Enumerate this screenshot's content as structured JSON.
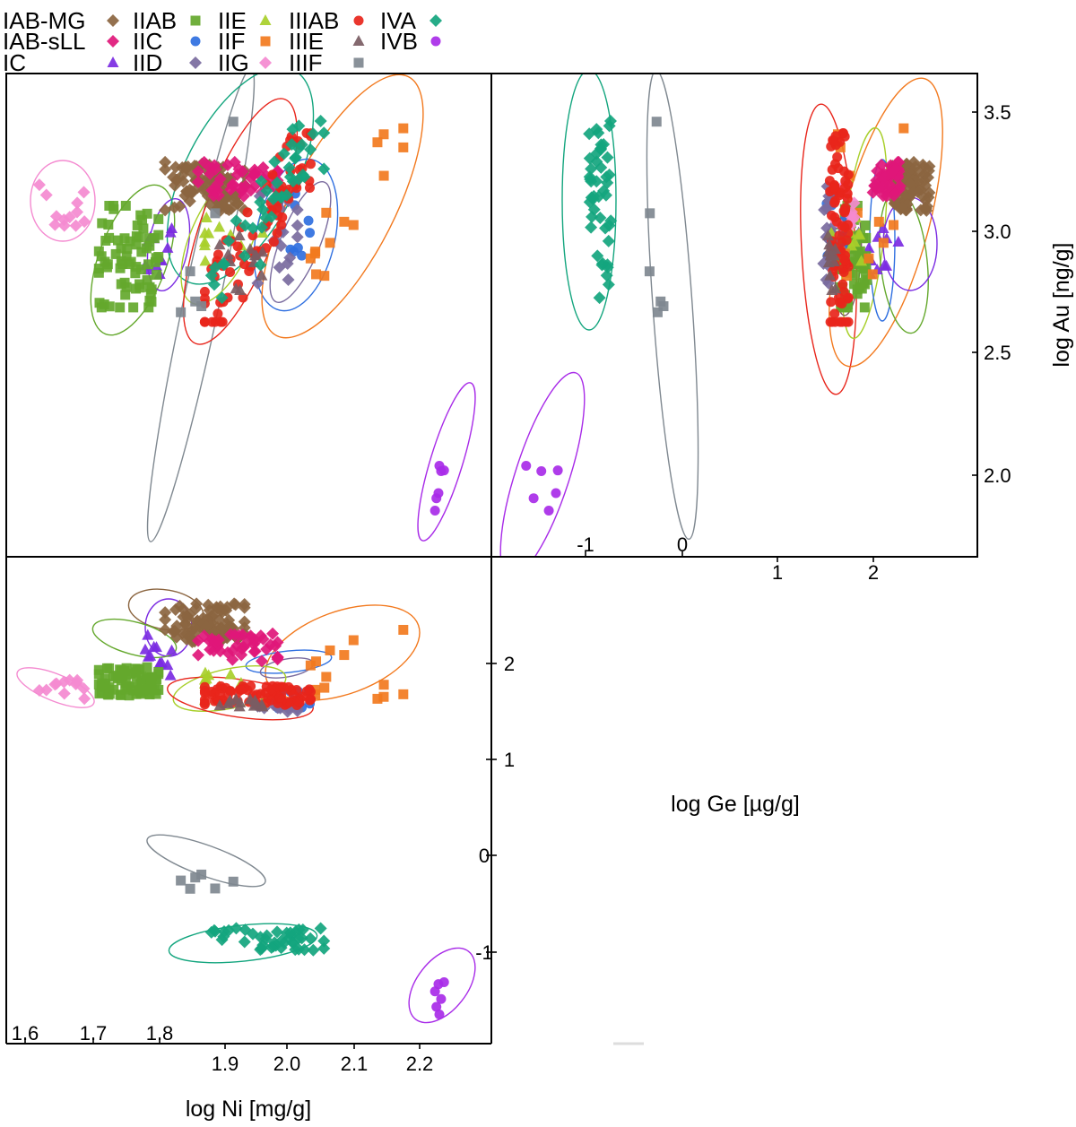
{
  "legend": [
    {
      "name": "IAB-MG",
      "color": "#8B6540",
      "marker": "diamond"
    },
    {
      "name": "IAB-sLL",
      "color": "#E0177A",
      "marker": "diamond"
    },
    {
      "name": "IC",
      "color": "#7B2BE2",
      "marker": "triangle"
    },
    {
      "name": "IIAB",
      "color": "#64A82C",
      "marker": "square"
    },
    {
      "name": "IIC",
      "color": "#2F6FE0",
      "marker": "circle"
    },
    {
      "name": "IID",
      "color": "#7A6B9E",
      "marker": "diamond"
    },
    {
      "name": "IIE",
      "color": "#A8CF2A",
      "marker": "triangle"
    },
    {
      "name": "IIF",
      "color": "#F2791E",
      "marker": "square"
    },
    {
      "name": "IIG",
      "color": "#F48AD0",
      "marker": "diamond"
    },
    {
      "name": "IIIAB",
      "color": "#E8251B",
      "marker": "circle"
    },
    {
      "name": "IIIE",
      "color": "#7A5C63",
      "marker": "triangle"
    },
    {
      "name": "IIIF",
      "color": "#7F8890",
      "marker": "square"
    },
    {
      "name": "IVA",
      "color": "#13A57E",
      "marker": "diamond"
    },
    {
      "name": "IVB",
      "color": "#A82BE8",
      "marker": "circle"
    }
  ],
  "chart_data": {
    "type": "scatter",
    "xlabel": "log Ni [mg/g]",
    "ylabel": "log Au [ng/g]",
    "ge_label": "log Ge [µg/g]",
    "ni_range": [
      1.57,
      2.3
    ],
    "ge_range": [
      -2.0,
      3.0
    ],
    "au_range": [
      1.65,
      3.65
    ],
    "ticks": {
      "ni_left": [
        "1.6",
        "1.7",
        "1.8"
      ],
      "ni_bottom": [
        "1.9",
        "2.0",
        "2.1",
        "2.2"
      ],
      "ge_inner": [
        "-1",
        "0"
      ],
      "ge_outer": [
        "1",
        "2"
      ],
      "ge_vertical": [
        "2",
        "1",
        "0",
        "-1"
      ],
      "au": [
        "3.5",
        "3.0",
        "2.5",
        "2.0"
      ]
    },
    "series": [
      {
        "name": "IAB-MG",
        "ni": [
          1.81,
          1.93
        ],
        "ge": [
          2.2,
          2.6
        ],
        "au": [
          3.08,
          3.28
        ]
      },
      {
        "name": "IAB-sLL",
        "ni": [
          1.86,
          1.98
        ],
        "ge": [
          2.0,
          2.3
        ],
        "au": [
          3.14,
          3.28
        ]
      },
      {
        "name": "IC",
        "ni": [
          1.78,
          1.82
        ],
        "ge": [
          1.85,
          2.35
        ],
        "au": [
          2.76,
          3.02
        ]
      },
      {
        "name": "IIAB",
        "ni": [
          1.71,
          1.8
        ],
        "ge": [
          1.65,
          1.95
        ],
        "au": [
          2.68,
          3.1
        ]
      },
      {
        "name": "IIC",
        "ni": [
          1.98,
          2.04
        ],
        "ge": [
          1.5,
          1.72
        ],
        "au": [
          2.8,
          3.15
        ]
      },
      {
        "name": "IID",
        "ni": [
          1.95,
          2.01
        ],
        "ge": [
          1.48,
          1.62
        ],
        "au": [
          2.78,
          3.18
        ]
      },
      {
        "name": "IIE",
        "ni": [
          1.87,
          1.98
        ],
        "ge": [
          1.55,
          1.95
        ],
        "au": [
          2.85,
          3.05
        ]
      },
      {
        "name": "IIF",
        "ni": [
          2.01,
          2.17
        ],
        "ge": [
          1.5,
          2.35
        ],
        "au": [
          2.78,
          3.42
        ]
      },
      {
        "name": "IIG",
        "ni": [
          1.62,
          1.69
        ],
        "ge": [
          1.6,
          1.85
        ],
        "au": [
          3.0,
          3.22
        ]
      },
      {
        "name": "IIIAB",
        "ni": [
          1.87,
          2.03
        ],
        "ge": [
          1.55,
          1.75
        ],
        "au": [
          2.62,
          3.4
        ]
      },
      {
        "name": "IIIE",
        "ni": [
          1.89,
          1.96
        ],
        "ge": [
          1.53,
          1.62
        ],
        "au": [
          2.75,
          3.0
        ]
      },
      {
        "name": "IIIF",
        "ni": [
          1.83,
          1.92
        ],
        "ge": [
          -0.35,
          0.05
        ],
        "au": [
          2.45,
          3.55
        ]
      },
      {
        "name": "IVA",
        "ni": [
          1.88,
          2.05
        ],
        "ge": [
          -0.98,
          -0.75
        ],
        "au": [
          2.72,
          3.45
        ]
      },
      {
        "name": "IVB",
        "ni": [
          2.21,
          2.24
        ],
        "ge": [
          -1.65,
          -1.2
        ],
        "au": [
          1.75,
          2.18
        ]
      }
    ]
  }
}
